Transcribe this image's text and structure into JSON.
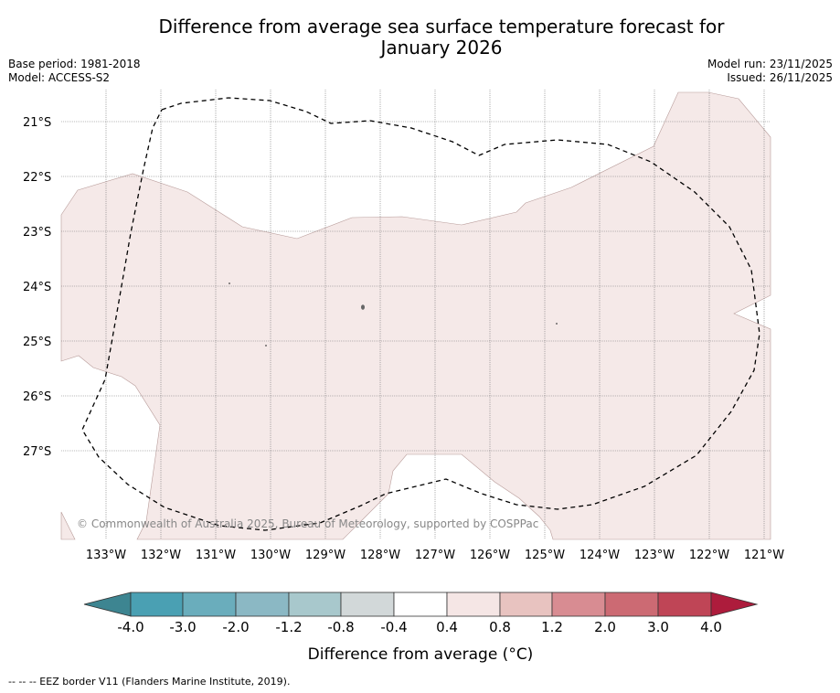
{
  "title_line1": "Difference from average sea surface temperature forecast for",
  "title_line2": "January 2026",
  "base_period": "Base period: 1981-2018",
  "model": "Model: ACCESS-S2",
  "model_run": "Model run: 23/11/2025",
  "issued": "Issued: 26/11/2025",
  "copyright": "© Commonwealth of Australia 2025, Bureau of Meteorology, supported by COSPPac",
  "footnote": "--  --  -- EEZ border V11 (Flanders Marine Institute, 2019).",
  "lat_labels": [
    "21°S",
    "22°S",
    "23°S",
    "24°S",
    "25°S",
    "26°S",
    "27°S"
  ],
  "lon_labels": [
    "133°W",
    "132°W",
    "131°W",
    "130°W",
    "129°W",
    "128°W",
    "127°W",
    "126°W",
    "125°W",
    "124°W",
    "123°W",
    "122°W",
    "121°W"
  ],
  "colorbar": {
    "label": "Difference from average (",
    "label_unit": "°C)",
    "ticks": [
      "-4.0",
      "-3.0",
      "-2.0",
      "-1.2",
      "-0.8",
      "-0.4",
      "0.4",
      "0.8",
      "1.2",
      "2.0",
      "3.0",
      "4.0"
    ],
    "colors": [
      "#4aa0b3",
      "#6aadbc",
      "#8bb8c4",
      "#a8c8cc",
      "#d2d8d9",
      "#ffffff",
      "#f5e6e5",
      "#e8c3c0",
      "#d88c92",
      "#cc6a73",
      "#bf4556"
    ],
    "extend_low": "#3d8591",
    "extend_high": "#ad1c3c"
  },
  "fill_color": "#f5e9e8"
}
